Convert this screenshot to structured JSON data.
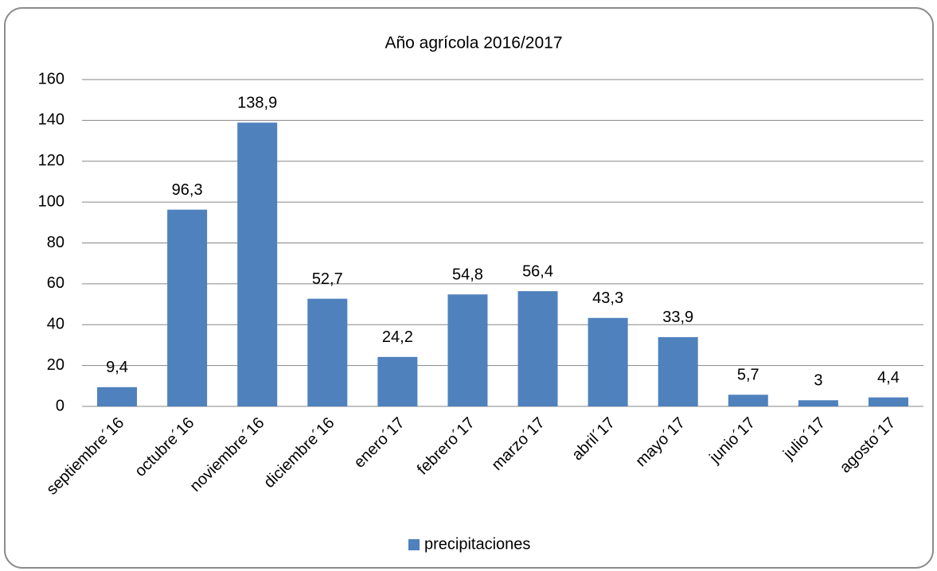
{
  "chart_data": {
    "type": "bar",
    "title": "Año agrícola 2016/2017",
    "categories": [
      "septiembre´16",
      "octubre´16",
      "noviembre´16",
      "diciembre´16",
      "enero´17",
      "febrero´17",
      "marzo´17",
      "abril´17",
      "mayo´17",
      "junio´17",
      "julio´17",
      "agosto´17"
    ],
    "series": [
      {
        "name": "precipitaciones",
        "color": "#4f81bd",
        "values": [
          9.4,
          96.3,
          138.9,
          52.7,
          24.2,
          54.8,
          56.4,
          43.3,
          33.9,
          5.7,
          3,
          4.4
        ],
        "value_labels": [
          "9,4",
          "96,3",
          "138,9",
          "52,7",
          "24,2",
          "54,8",
          "56,4",
          "43,3",
          "33,9",
          "5,7",
          "3",
          "4,4"
        ]
      }
    ],
    "ylim": [
      0,
      160
    ],
    "yticks": [
      0,
      20,
      40,
      60,
      80,
      100,
      120,
      140,
      160
    ],
    "grid": true,
    "legend": "bottom"
  }
}
